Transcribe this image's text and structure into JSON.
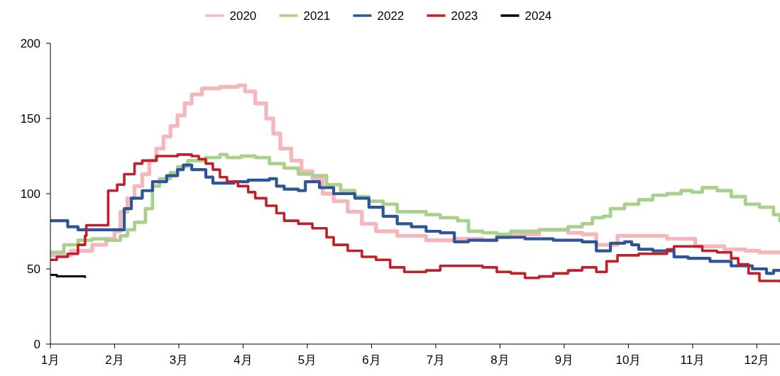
{
  "chart_data": {
    "type": "step",
    "xlim": [
      1,
      12.36
    ],
    "xticks": [
      {
        "value": 1,
        "label": "1月"
      },
      {
        "value": 2,
        "label": "2月"
      },
      {
        "value": 3,
        "label": "3月"
      },
      {
        "value": 4,
        "label": "4月"
      },
      {
        "value": 5,
        "label": "5月"
      },
      {
        "value": 6,
        "label": "6月"
      },
      {
        "value": 7,
        "label": "7月"
      },
      {
        "value": 8,
        "label": "8月"
      },
      {
        "value": 9,
        "label": "9月"
      },
      {
        "value": 10,
        "label": "10月"
      },
      {
        "value": 11,
        "label": "11月"
      },
      {
        "value": 12,
        "label": "12月"
      }
    ],
    "ylim": [
      0,
      200
    ],
    "yticks": [
      0,
      50,
      100,
      150,
      200
    ],
    "grid": false,
    "legend": "top",
    "series": [
      {
        "name": "2020",
        "color": "#f4b8bc",
        "x": [
          1,
          1.32,
          1.65,
          1.87,
          2,
          2.09,
          2.2,
          2.31,
          2.43,
          2.54,
          2.65,
          2.76,
          2.87,
          2.98,
          3.09,
          3.2,
          3.36,
          3.64,
          3.92,
          4.03,
          4.19,
          4.36,
          4.47,
          4.58,
          4.75,
          4.91,
          5.08,
          5.24,
          5.41,
          5.63,
          5.85,
          6.07,
          6.4,
          6.85,
          7.29,
          7.73,
          7.95,
          8.17,
          8.61,
          9.06,
          9.28,
          9.5,
          9.72,
          9.83,
          10.16,
          10.6,
          11.04,
          11.49,
          11.82,
          12.04,
          12.36
        ],
        "values": [
          59,
          62,
          66,
          70,
          75,
          88,
          97,
          105,
          113,
          122,
          130,
          138,
          145,
          152,
          160,
          166,
          170,
          171,
          172,
          168,
          160,
          150,
          140,
          130,
          122,
          115,
          110,
          100,
          95,
          88,
          80,
          75,
          72,
          69,
          70,
          69,
          71,
          73,
          76,
          74,
          73,
          66,
          66,
          72,
          72,
          70,
          65,
          63,
          62,
          61,
          61
        ]
      },
      {
        "name": "2021",
        "color": "#a9d18e",
        "x": [
          1,
          1.21,
          1.43,
          1.65,
          1.87,
          2.09,
          2.2,
          2.31,
          2.43,
          2.48,
          2.59,
          2.7,
          2.87,
          2.98,
          3.14,
          3.42,
          3.64,
          3.75,
          3.97,
          4.19,
          4.41,
          4.64,
          4.86,
          5.08,
          5.3,
          5.52,
          5.74,
          5.96,
          6.18,
          6.4,
          6.62,
          6.85,
          7.07,
          7.34,
          7.51,
          7.73,
          7.95,
          8.17,
          8.39,
          8.61,
          8.83,
          9.06,
          9.28,
          9.44,
          9.61,
          9.72,
          9.94,
          10.16,
          10.38,
          10.6,
          10.82,
          10.99,
          11.15,
          11.38,
          11.6,
          11.82,
          12.04,
          12.26,
          12.36
        ],
        "values": [
          61,
          66,
          69,
          70,
          69,
          72,
          76,
          81,
          81,
          90,
          105,
          110,
          114,
          118,
          122,
          124,
          126,
          124,
          125,
          124,
          120,
          117,
          113,
          112,
          106,
          102,
          98,
          95,
          93,
          88,
          88,
          86,
          84,
          82,
          75,
          74,
          73,
          75,
          75,
          76,
          76,
          78,
          80,
          84,
          85,
          90,
          93,
          96,
          99,
          100,
          102,
          101,
          104,
          102,
          98,
          93,
          91,
          86,
          81
        ]
      },
      {
        "name": "2022",
        "color": "#2f5597",
        "x": [
          1,
          1.1,
          1.27,
          1.43,
          1.65,
          2.12,
          2.15,
          2.26,
          2.43,
          2.59,
          2.81,
          2.98,
          3.07,
          3.2,
          3.42,
          3.53,
          3.86,
          4.08,
          4.41,
          4.52,
          4.64,
          4.86,
          4.97,
          5.08,
          5.19,
          5.41,
          5.74,
          5.96,
          6.18,
          6.4,
          6.62,
          6.85,
          7.07,
          7.29,
          7.51,
          7.95,
          8.39,
          8.83,
          9.28,
          9.5,
          9.66,
          9.72,
          9.94,
          10.05,
          10.16,
          10.38,
          10.6,
          10.71,
          10.93,
          11.27,
          11.6,
          11.93,
          12.15,
          12.26,
          12.36
        ],
        "values": [
          82,
          82,
          78,
          76,
          76,
          76,
          90,
          97,
          102,
          108,
          112,
          116,
          119,
          116,
          111,
          107,
          108,
          109,
          110,
          105,
          103,
          102,
          108,
          108,
          104,
          100,
          97,
          91,
          85,
          80,
          78,
          75,
          74,
          68,
          69,
          71,
          70,
          69,
          68,
          62,
          62,
          67,
          68,
          66,
          63,
          62,
          62,
          58,
          57,
          55,
          52,
          50,
          47,
          49,
          50
        ]
      },
      {
        "name": "2023",
        "color": "#c0202a",
        "x": [
          1,
          1.1,
          1.27,
          1.43,
          1.54,
          1.56,
          1.87,
          1.9,
          2.04,
          2.15,
          2.31,
          2.43,
          2.54,
          2.65,
          2.87,
          2.98,
          3.2,
          3.31,
          3.42,
          3.53,
          3.64,
          3.75,
          3.92,
          4.08,
          4.19,
          4.36,
          4.52,
          4.64,
          4.86,
          5.08,
          5.3,
          5.41,
          5.63,
          5.85,
          6.07,
          6.29,
          6.51,
          6.85,
          7.07,
          7.4,
          7.73,
          7.95,
          8.17,
          8.39,
          8.61,
          8.83,
          9.06,
          9.28,
          9.5,
          9.61,
          9.66,
          9.83,
          10.16,
          10.38,
          10.6,
          10.71,
          10.93,
          11.15,
          11.38,
          11.6,
          11.71,
          11.87,
          12.04,
          12.36
        ],
        "values": [
          56,
          58,
          60,
          66,
          72,
          79,
          79,
          102,
          106,
          113,
          120,
          122,
          122,
          125,
          125,
          126,
          125,
          123,
          120,
          116,
          111,
          108,
          105,
          101,
          97,
          92,
          87,
          82,
          80,
          77,
          71,
          66,
          62,
          58,
          56,
          51,
          48,
          49,
          52,
          52,
          51,
          48,
          47,
          44,
          45,
          47,
          49,
          51,
          48,
          48,
          55,
          59,
          60,
          60,
          63,
          65,
          65,
          62,
          61,
          57,
          53,
          47,
          42,
          41
        ]
      },
      {
        "name": "2024",
        "color": "#000000",
        "x": [
          1,
          1.1,
          1.27,
          1.43,
          1.54
        ],
        "values": [
          46,
          45,
          45,
          45,
          44
        ]
      }
    ]
  }
}
